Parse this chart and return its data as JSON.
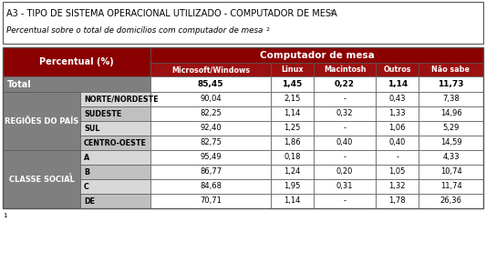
{
  "title": "A3 - TIPO DE SISTEMA OPERACIONAL UTILIZADO - COMPUTADOR DE MESA",
  "title_sup": "1",
  "subtitle": "Percentual sobre o total de domílios com computador de mesa",
  "subtitle_full": "Percentual sobre o total de domicílios com computador de mesa",
  "subtitle_sup": "2",
  "col_header_top": "Computador de mesa",
  "col_left_header": "Percentual (%)",
  "columns": [
    "Microsoft/Windows",
    "Linux",
    "Macintosh",
    "Outros",
    "Não sabe"
  ],
  "total_label": "Total",
  "total_values": [
    "85,45",
    "1,45",
    "0,22",
    "1,14",
    "11,73"
  ],
  "group1_label": "REGIÕES DO PAÍS",
  "group1_rows": [
    [
      "NORTE/NORDESTE",
      "90,04",
      "2,15",
      "-",
      "0,43",
      "7,38"
    ],
    [
      "SUDESTE",
      "82,25",
      "1,14",
      "0,32",
      "1,33",
      "14,96"
    ],
    [
      "SUL",
      "92,40",
      "1,25",
      "-",
      "1,06",
      "5,29"
    ],
    [
      "CENTRO-OESTE",
      "82,75",
      "1,86",
      "0,40",
      "0,40",
      "14,59"
    ]
  ],
  "group2_label": "CLASSE SOCIAL",
  "group2_sup": "3",
  "group2_rows": [
    [
      "A",
      "95,49",
      "0,18",
      "-",
      "-",
      "4,33"
    ],
    [
      "B",
      "86,77",
      "1,24",
      "0,20",
      "1,05",
      "10,74"
    ],
    [
      "C",
      "84,68",
      "1,95",
      "0,31",
      "1,32",
      "11,74"
    ],
    [
      "DE",
      "70,71",
      "1,14",
      "-",
      "1,78",
      "26,36"
    ]
  ],
  "color_dark_red": "#8B0000",
  "color_med_red": "#9B1010",
  "color_dark_gray": "#7F7F7F",
  "color_light_gray1": "#D8D8D8",
  "color_light_gray2": "#C0C0C0",
  "color_white": "#FFFFFF",
  "color_black": "#000000",
  "color_border": "#555555",
  "footnote": "1"
}
